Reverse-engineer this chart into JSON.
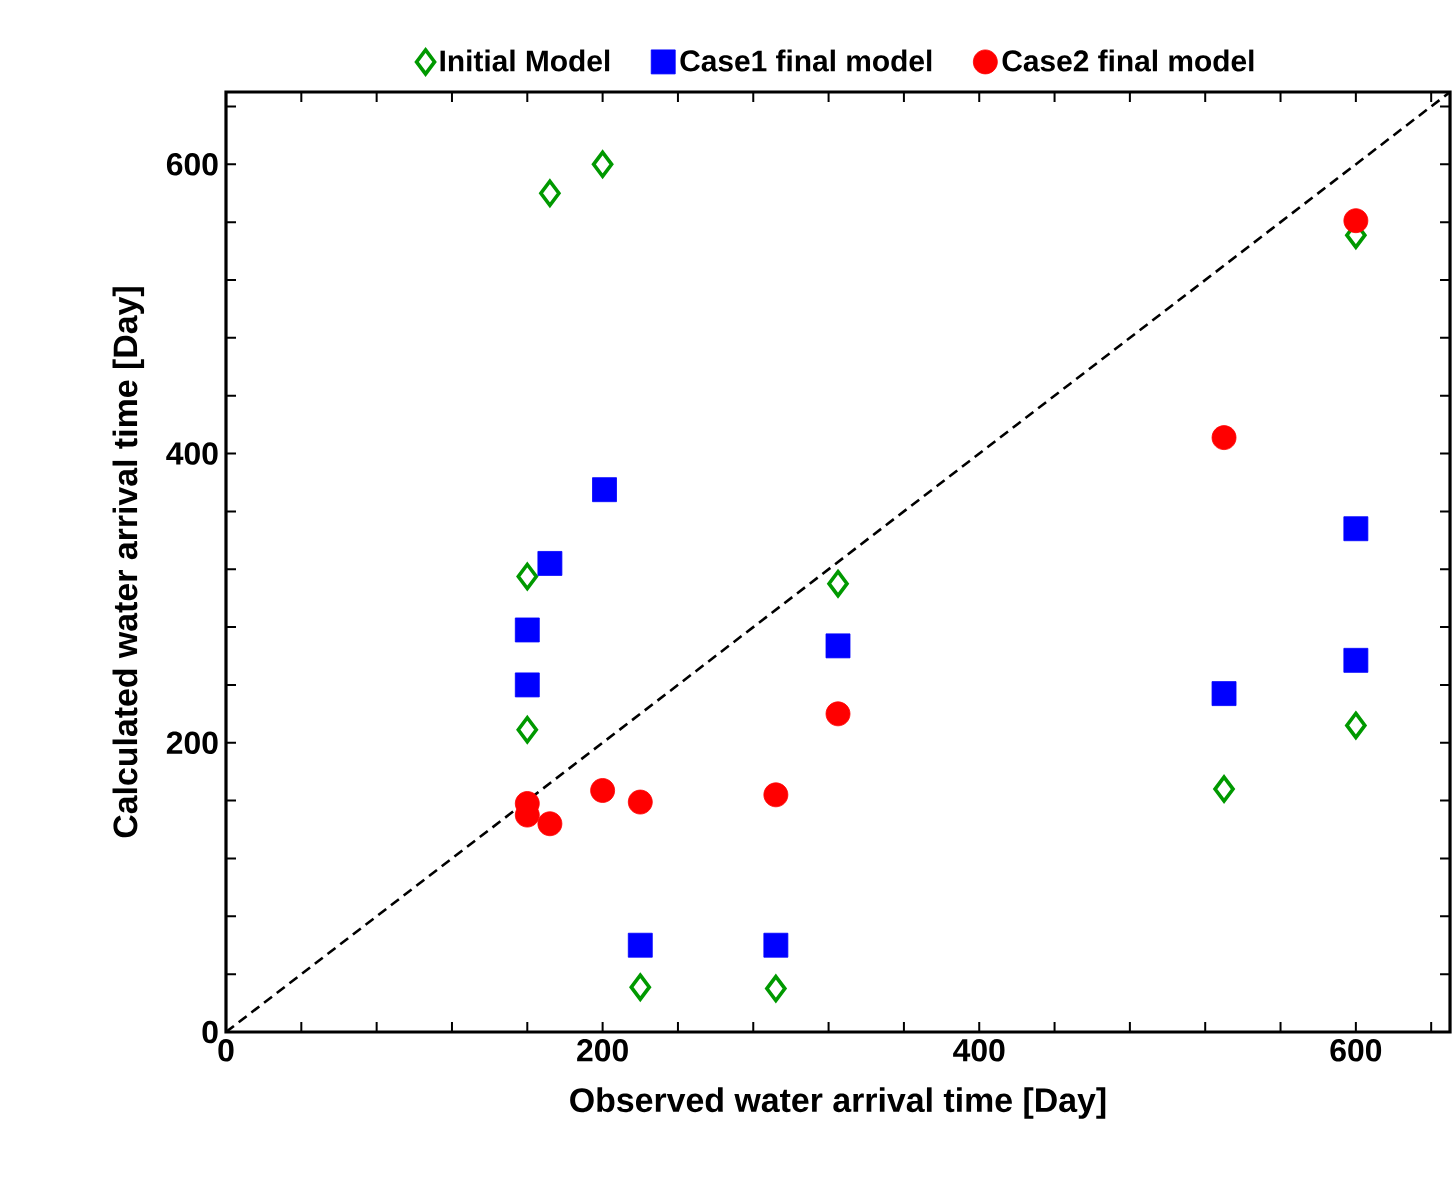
{
  "chart_data": {
    "type": "scatter",
    "xlabel": "Observed water arrival time [Day]",
    "ylabel": "Calculated water arrival time [Day]",
    "xlim": [
      0,
      650
    ],
    "ylim": [
      0,
      650
    ],
    "xticks": [
      0,
      {
        "value": 40,
        "label": null
      },
      {
        "value": 80,
        "label": null
      },
      {
        "value": 120,
        "label": null
      },
      {
        "value": 160,
        "label": null
      },
      200,
      {
        "value": 240,
        "label": null
      },
      {
        "value": 280,
        "label": null
      },
      {
        "value": 320,
        "label": null
      },
      {
        "value": 360,
        "label": null
      },
      400,
      {
        "value": 440,
        "label": null
      },
      {
        "value": 480,
        "label": null
      },
      {
        "value": 520,
        "label": null
      },
      {
        "value": 560,
        "label": null
      },
      600,
      {
        "value": 640,
        "label": null
      }
    ],
    "yticks": [
      0,
      {
        "value": 40,
        "label": null
      },
      {
        "value": 80,
        "label": null
      },
      {
        "value": 120,
        "label": null
      },
      {
        "value": 160,
        "label": null
      },
      200,
      {
        "value": 240,
        "label": null
      },
      {
        "value": 280,
        "label": null
      },
      {
        "value": 320,
        "label": null
      },
      {
        "value": 360,
        "label": null
      },
      400,
      {
        "value": 440,
        "label": null
      },
      {
        "value": 480,
        "label": null
      },
      {
        "value": 520,
        "label": null
      },
      {
        "value": 560,
        "label": null
      },
      600,
      {
        "value": 640,
        "label": null
      }
    ],
    "legend": "top",
    "grid": false,
    "series": [
      {
        "name": "Initial Model",
        "color": "#009900",
        "marker": "diamond",
        "x": [
          172,
          200,
          160,
          160,
          220,
          292,
          325,
          530,
          600,
          600
        ],
        "values": [
          580,
          600,
          315,
          209,
          31,
          30,
          310,
          168,
          212,
          551
        ]
      },
      {
        "name": "Case1 final model",
        "color": "#0000ff",
        "marker": "square",
        "x": [
          201,
          172,
          160,
          160,
          220,
          292,
          325,
          530,
          600,
          600
        ],
        "values": [
          375,
          324,
          278,
          240,
          60,
          60,
          267,
          234,
          348,
          257
        ]
      },
      {
        "name": "Case2 final model",
        "color": "#ff0000",
        "marker": "circle",
        "x": [
          160,
          160,
          172,
          200,
          220,
          292,
          325,
          530,
          600
        ],
        "values": [
          158,
          150,
          144,
          167,
          159,
          164,
          220,
          411,
          561
        ]
      },
      {
        "type": "line",
        "color": "#000000",
        "line_style": "dashed",
        "marker": "none",
        "x": [
          0,
          650
        ],
        "values": [
          0,
          650
        ]
      }
    ]
  }
}
